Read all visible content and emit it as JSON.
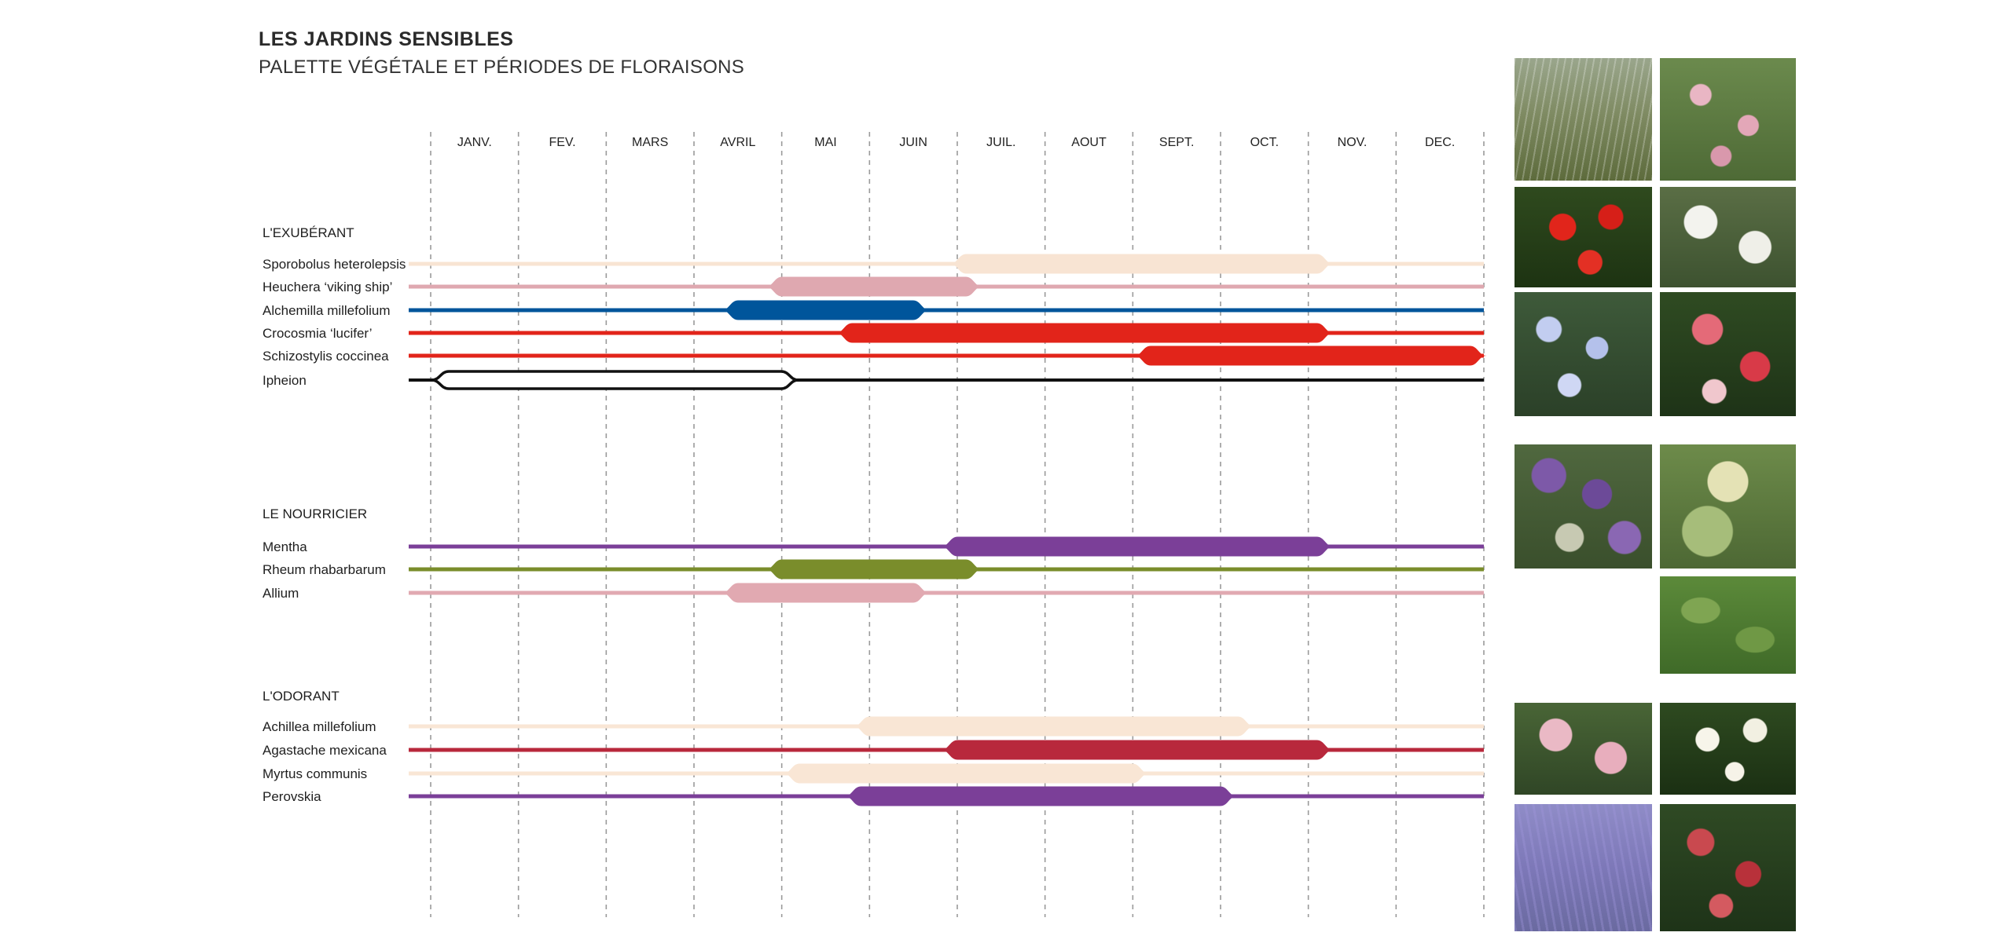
{
  "header": {
    "title": "LES JARDINS SENSIBLES",
    "subtitle": "PALETTE VÉGÉTALE ET PÉRIODES DE FLORAISONS"
  },
  "chart_data": {
    "type": "timeline",
    "months": [
      "JANV.",
      "FEV.",
      "MARS",
      "AVRIL",
      "MAI",
      "JUIN",
      "JUIL.",
      "AOUT",
      "SEPT.",
      "OCT.",
      "NOV.",
      "DEC."
    ],
    "x_range": [
      0,
      12
    ],
    "grid": "dashed vertical lines at month boundaries",
    "groups": [
      {
        "name": "L'EXUBÉRANT",
        "plants": [
          {
            "name": "Sporobolus heterolepsis",
            "color": "#f8e4d3",
            "bloom_start": 6.0,
            "bloom_end": 10.2,
            "outline": false
          },
          {
            "name": "Heuchera ‘viking ship’",
            "color": "#dfa8b0",
            "bloom_start": 3.9,
            "bloom_end": 6.2,
            "outline": false
          },
          {
            "name": "Alchemilla millefolium",
            "color": "#00559b",
            "bloom_start": 3.4,
            "bloom_end": 5.6,
            "outline": false
          },
          {
            "name": "Crocosmia ‘lucifer’",
            "color": "#e2241a",
            "bloom_start": 4.7,
            "bloom_end": 10.2,
            "outline": false
          },
          {
            "name": "Schizostylis coccinea",
            "color": "#e2241a",
            "bloom_start": 8.1,
            "bloom_end": 12.0,
            "outline": false
          },
          {
            "name": "Ipheion",
            "color": "#111111",
            "bloom_start": 0.1,
            "bloom_end": 4.1,
            "outline": true
          }
        ]
      },
      {
        "name": "LE NOURRICIER",
        "plants": [
          {
            "name": "Mentha",
            "color": "#7b3f98",
            "bloom_start": 5.9,
            "bloom_end": 10.2,
            "outline": false
          },
          {
            "name": "Rheum rhabarbarum",
            "color": "#7a8d2b",
            "bloom_start": 3.9,
            "bloom_end": 6.2,
            "outline": false
          },
          {
            "name": "Allium",
            "color": "#e1a9b1",
            "bloom_start": 3.4,
            "bloom_end": 5.6,
            "outline": false
          }
        ]
      },
      {
        "name": "L'ODORANT",
        "plants": [
          {
            "name": "Achillea millefolium",
            "color": "#f9e6d5",
            "bloom_start": 4.9,
            "bloom_end": 9.3,
            "outline": false
          },
          {
            "name": "Agastache mexicana",
            "color": "#b8283c",
            "bloom_start": 5.9,
            "bloom_end": 10.2,
            "outline": false
          },
          {
            "name": "Myrtus communis",
            "color": "#f9e6d5",
            "bloom_start": 4.1,
            "bloom_end": 8.1,
            "outline": false
          },
          {
            "name": "Perovskia",
            "color": "#7b3f98",
            "bloom_start": 4.8,
            "bloom_end": 9.1,
            "outline": false
          }
        ]
      }
    ]
  },
  "photos": [
    {
      "subject": "sporobolus-grass"
    },
    {
      "subject": "heuchera-pink-flowers"
    },
    {
      "subject": "crocosmia-red-flowers"
    },
    {
      "subject": "white-umbel-flowers"
    },
    {
      "subject": "ipheion-blue-flowers"
    },
    {
      "subject": "schizostylis-red-pink-flowers"
    },
    {
      "subject": "allium-purple-globes"
    },
    {
      "subject": "rheum-plant"
    },
    {
      "subject": "mentha-leaves"
    },
    {
      "subject": "achillea-pink-flowers"
    },
    {
      "subject": "myrtus-white-flowers"
    },
    {
      "subject": "perovskia-lavender"
    },
    {
      "subject": "agastache-red-spikes"
    }
  ]
}
